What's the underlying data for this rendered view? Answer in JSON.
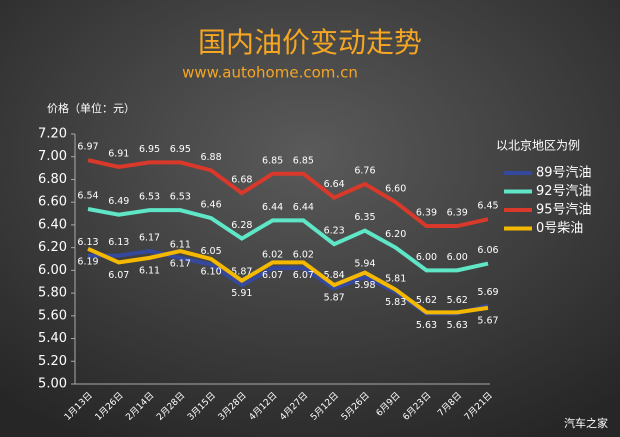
{
  "chart_data": {
    "type": "line",
    "title": "国内油价变动走势",
    "subtitle": "www.autohome.com.cn",
    "y_label": "价格（单位：元）",
    "legend_title": "以北京地区为例",
    "watermark": "汽车之家",
    "categories": [
      "1月13日",
      "1月26日",
      "2月14日",
      "2月28日",
      "3月15日",
      "3月28日",
      "4月12日",
      "4月27日",
      "5月12日",
      "5月26日",
      "6月9日",
      "6月23日",
      "7月8日",
      "7月21日"
    ],
    "series": [
      {
        "name": "89号汽油",
        "color": "#34489e",
        "label_pos": "above",
        "values": [
          6.13,
          6.13,
          6.17,
          6.11,
          6.05,
          5.87,
          6.02,
          6.02,
          5.84,
          5.94,
          5.81,
          5.62,
          5.62,
          5.69
        ],
        "value_labels": [
          "6.13",
          "6.13",
          "6.17",
          "6.11",
          "6.05",
          "5.87",
          "6.02",
          "6.02",
          "5.84",
          "5.94",
          "5.81",
          "5.62",
          "5.62",
          "5.69"
        ]
      },
      {
        "name": "92号汽油",
        "color": "#5fe6c6",
        "label_pos": "above",
        "values": [
          6.54,
          6.49,
          6.53,
          6.53,
          6.46,
          6.28,
          6.44,
          6.44,
          6.23,
          6.35,
          6.2,
          6,
          6,
          6.06
        ],
        "value_labels": [
          "6.54",
          "6.49",
          "6.53",
          "6.53",
          "6.46",
          "6.28",
          "6.44",
          "6.44",
          "6.23",
          "6.35",
          "6.20",
          "6.00",
          "6.00",
          "6.06"
        ]
      },
      {
        "name": "95号汽油",
        "color": "#d8392a",
        "label_pos": "above",
        "values": [
          6.97,
          6.91,
          6.95,
          6.95,
          6.88,
          6.68,
          6.85,
          6.85,
          6.64,
          6.76,
          6.6,
          6.39,
          6.39,
          6.45
        ],
        "value_labels": [
          "6.97",
          "6.91",
          "6.95",
          "6.95",
          "6.88",
          "6.68",
          "6.85",
          "6.85",
          "6.64",
          "6.76",
          "6.60",
          "6.39",
          "6.39",
          "6.45"
        ]
      },
      {
        "name": "0号柴油",
        "color": "#f4b800",
        "label_pos": "below",
        "values": [
          6.19,
          6.07,
          6.11,
          6.17,
          6.1,
          5.91,
          6.07,
          6.07,
          5.87,
          5.98,
          5.83,
          5.63,
          5.63,
          5.67
        ],
        "value_labels": [
          "6.19",
          "6.07",
          "6.11",
          "6.17",
          "6.10",
          "5.91",
          "6.07",
          "6.07",
          "5.87",
          "5.98",
          "5.83",
          "5.63",
          "5.63",
          "5.67"
        ]
      }
    ],
    "ylim": [
      5,
      7.2
    ],
    "yticks": [
      {
        "value": 5,
        "label": "5.00"
      },
      {
        "value": 5.2,
        "label": "5.20"
      },
      {
        "value": 5.4,
        "label": "5.40"
      },
      {
        "value": 5.6,
        "label": "5.60"
      },
      {
        "value": 5.8,
        "label": "5.80"
      },
      {
        "value": 6,
        "label": "6.00"
      },
      {
        "value": 6.2,
        "label": "6.20"
      },
      {
        "value": 6.4,
        "label": "6.40"
      },
      {
        "value": 6.6,
        "label": "6.60"
      },
      {
        "value": 6.8,
        "label": "6.80"
      },
      {
        "value": 7,
        "label": "7.00"
      },
      {
        "value": 7.2,
        "label": "7.20"
      }
    ],
    "grid": false,
    "legend": "right"
  }
}
